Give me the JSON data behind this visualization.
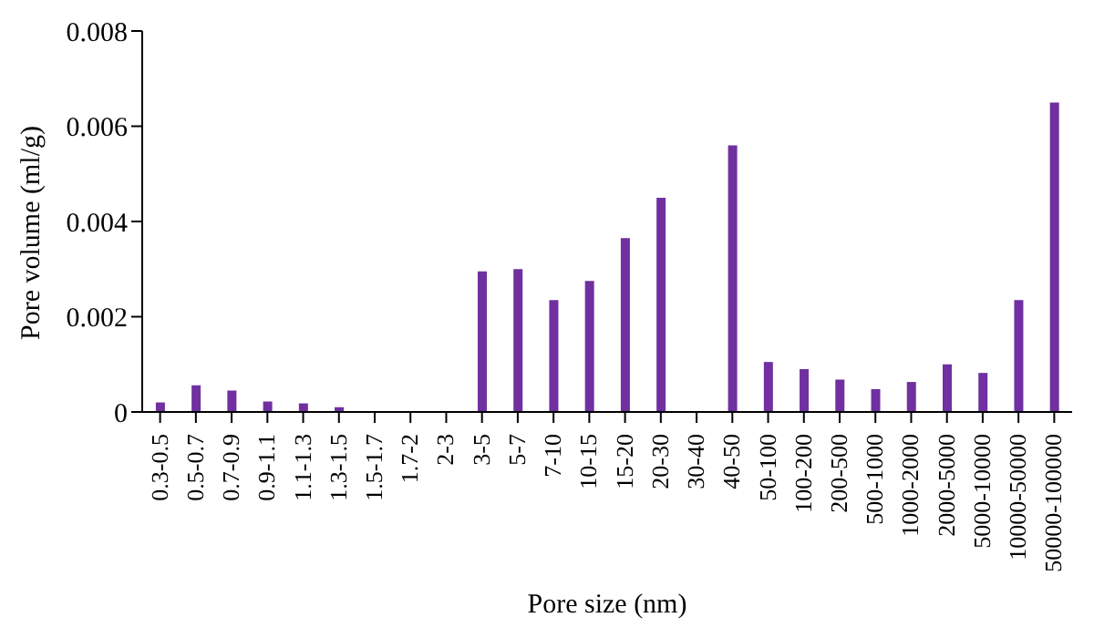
{
  "chart_data": {
    "type": "bar",
    "xlabel": "Pore size (nm)",
    "ylabel": "Pore volume (ml/g)",
    "categories": [
      "0.3-0.5",
      "0.5-0.7",
      "0.7-0.9",
      "0.9-1.1",
      "1.1-1.3",
      "1.3-1.5",
      "1.5-1.7",
      "1.7-2",
      "2-3",
      "3-5",
      "5-7",
      "7-10",
      "10-15",
      "15-20",
      "20-30",
      "30-40",
      "40-50",
      "50-100",
      "100-200",
      "200-500",
      "500-1000",
      "1000-2000",
      "2000-5000",
      "5000-10000",
      "10000-50000",
      "50000-100000"
    ],
    "values": [
      0.0002,
      0.00056,
      0.00045,
      0.00022,
      0.00018,
      0.0001,
      0,
      0,
      0,
      0.00295,
      0.003,
      0.00235,
      0.00275,
      0.00365,
      0.0045,
      0,
      0.0056,
      0.00105,
      0.0009,
      0.00068,
      0.00048,
      0.00063,
      0.001,
      0.00082,
      0.00235,
      0.0065
    ],
    "color": "#7030a0",
    "ylim": [
      0,
      0.008
    ],
    "yticks": [
      0,
      0.002,
      0.004,
      0.006,
      0.008
    ],
    "grid": false,
    "legend": false
  }
}
